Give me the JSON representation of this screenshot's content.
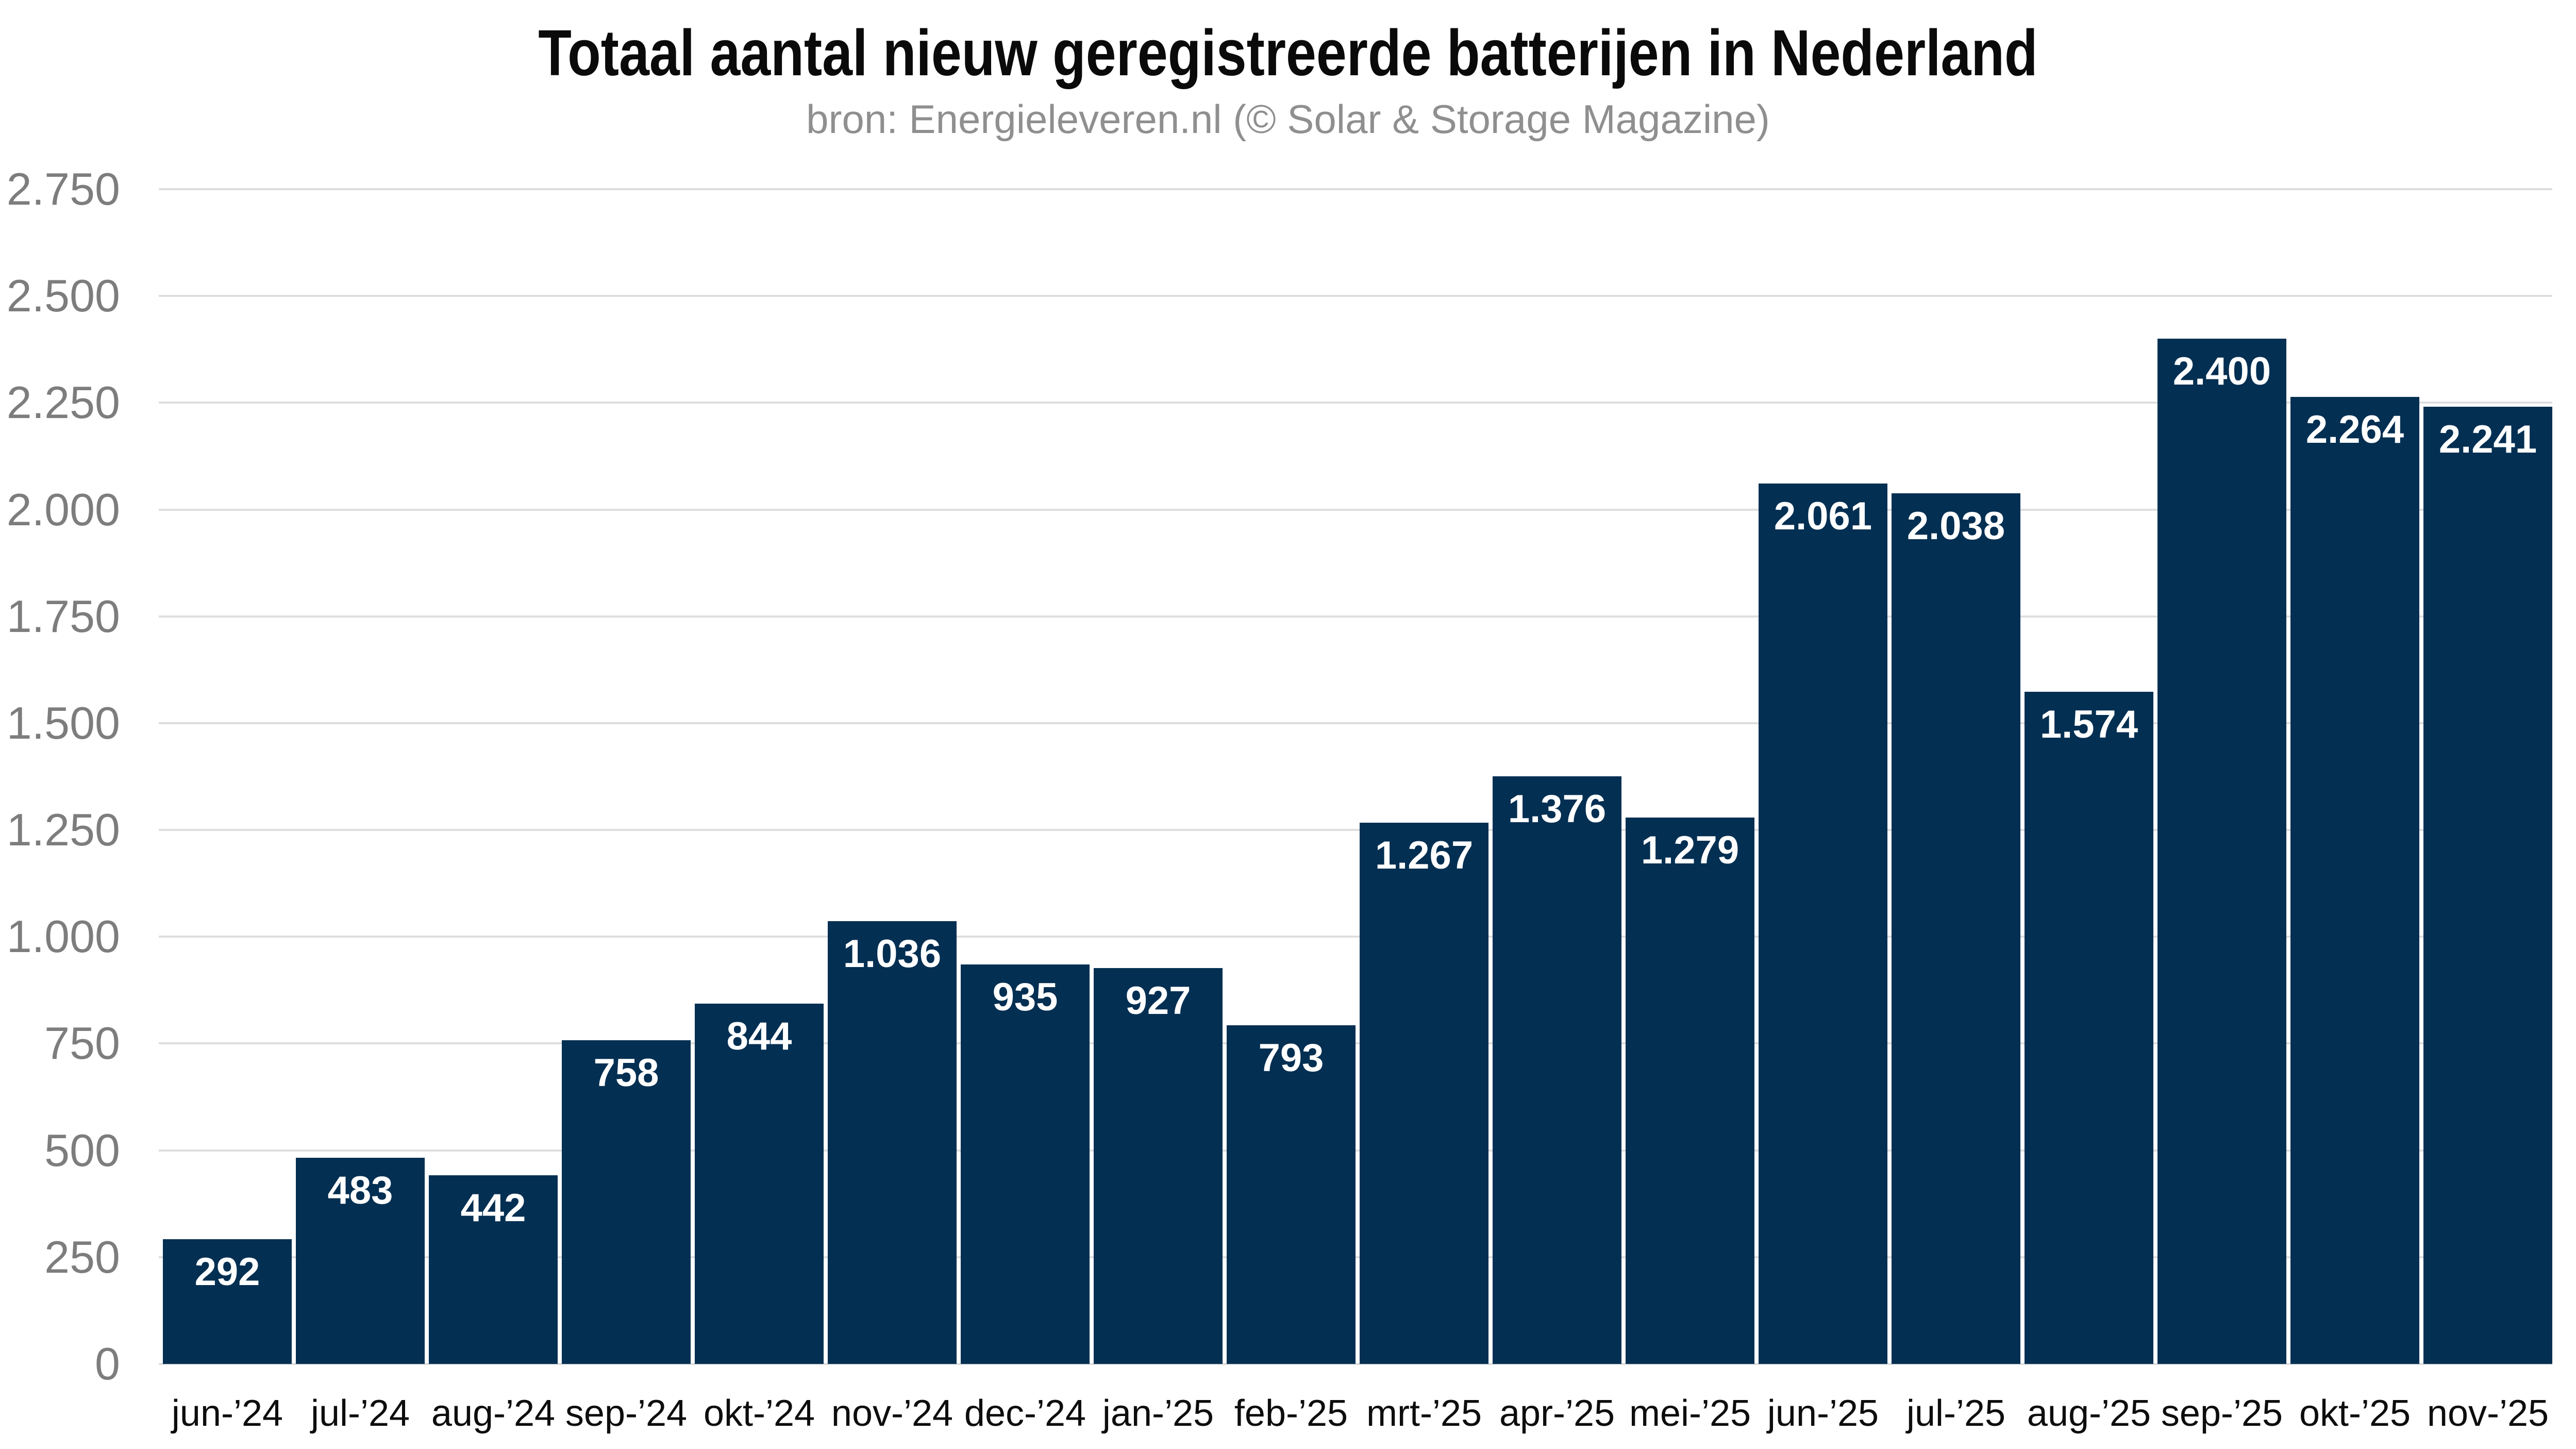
{
  "title": "Totaal aantal nieuw geregistreerde batterijen in Nederland",
  "subtitle": "bron: Energieleveren.nl (© Solar & Storage Magazine)",
  "colors": {
    "background": "#ffffff",
    "bar": "#032f52",
    "grid": "#dedede",
    "y_axis_label": "#7d7d7d",
    "x_axis_label": "#0d0d0d",
    "value_label": "#ffffff",
    "title": "#0a0a0a",
    "subtitle": "#8f8f8f"
  },
  "chart_data": {
    "type": "bar",
    "title": "Totaal aantal nieuw geregistreerde batterijen in Nederland",
    "subtitle": "bron: Energieleveren.nl (© Solar & Storage Magazine)",
    "categories": [
      "jun-’24",
      "jul-’24",
      "aug-’24",
      "sep-’24",
      "okt-’24",
      "nov-’24",
      "dec-’24",
      "jan-’25",
      "feb-’25",
      "mrt-’25",
      "apr-’25",
      "mei-’25",
      "jun-’25",
      "jul-’25",
      "aug-’25",
      "sep-’25",
      "okt-’25",
      "nov-’25"
    ],
    "values": [
      292,
      483,
      442,
      758,
      844,
      1036,
      935,
      927,
      793,
      1267,
      1376,
      1279,
      2061,
      2038,
      1574,
      2400,
      2264,
      2241
    ],
    "value_labels": [
      "292",
      "483",
      "442",
      "758",
      "844",
      "1.036",
      "935",
      "927",
      "793",
      "1.267",
      "1.376",
      "1.279",
      "2.061",
      "2.038",
      "1.574",
      "2.400",
      "2.264",
      "2.241"
    ],
    "xlabel": "",
    "ylabel": "",
    "ylim": [
      0,
      2750
    ],
    "ytick_interval": 250,
    "ytick_labels": [
      "0",
      "250",
      "500",
      "750",
      "1.000",
      "1.250",
      "1.500",
      "1.750",
      "2.000",
      "2.250",
      "2.500",
      "2.750"
    ],
    "grid": "horizontal",
    "legend": "none"
  }
}
